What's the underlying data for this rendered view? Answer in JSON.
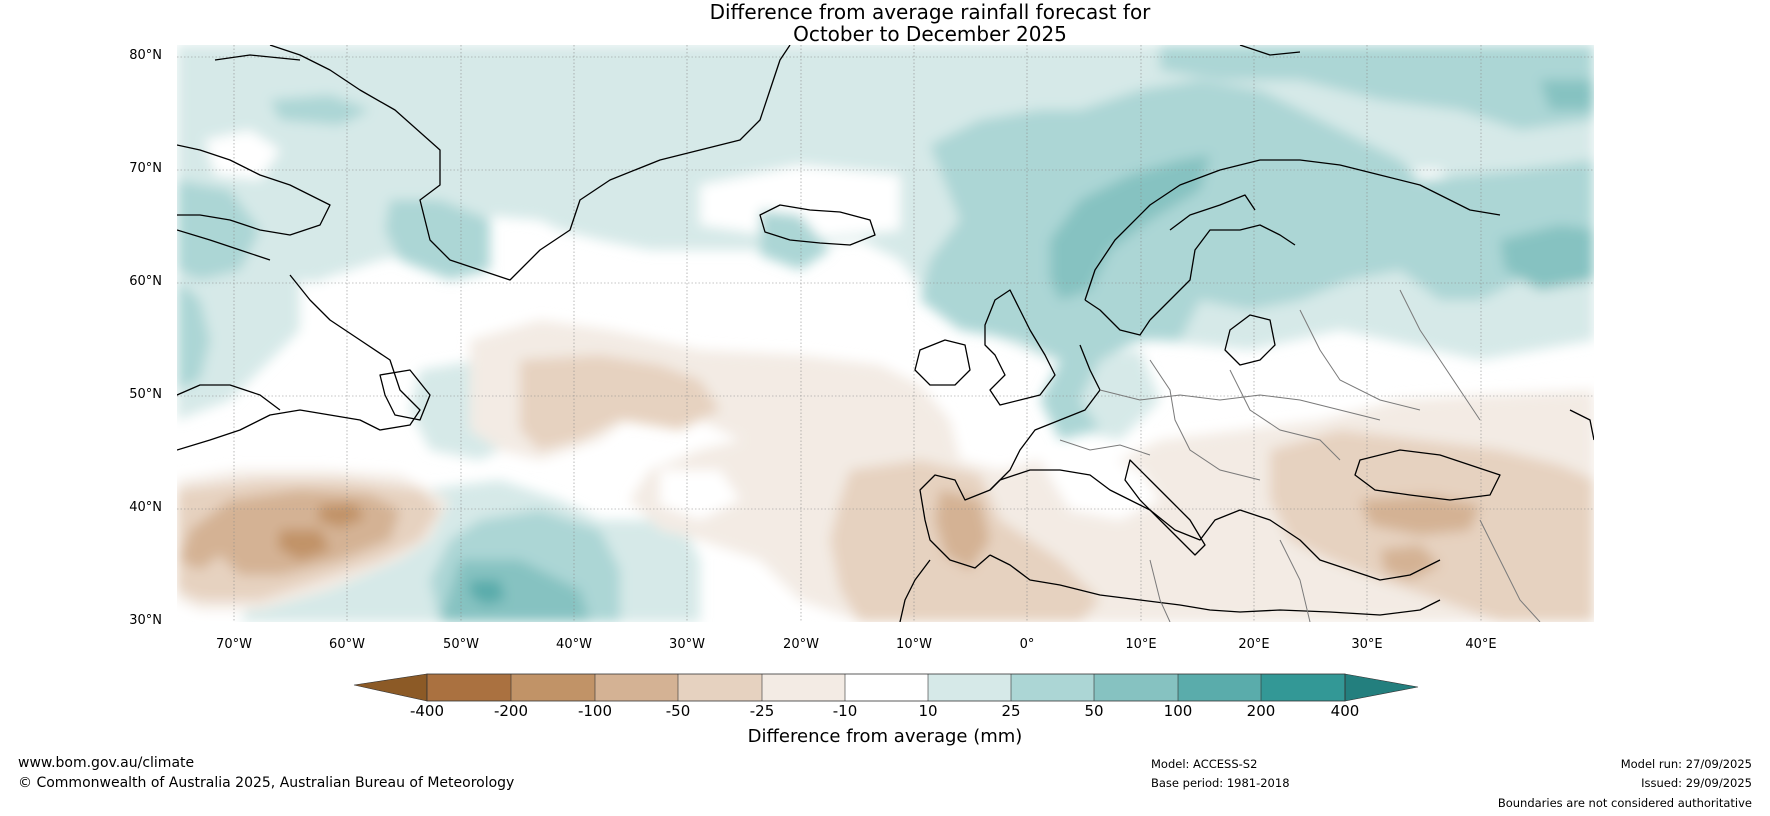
{
  "title": {
    "line1": "Difference from average rainfall forecast for",
    "line2": "October to December 2025"
  },
  "map": {
    "projection": "plate-carree",
    "lon_range": [
      -75,
      50
    ],
    "lat_range": [
      30,
      81
    ],
    "lat_labels": [
      "80°N",
      "70°N",
      "60°N",
      "50°N",
      "40°N",
      "30°N"
    ],
    "lon_labels": [
      "70°W",
      "60°W",
      "50°W",
      "40°W",
      "30°W",
      "20°W",
      "10°W",
      "0°",
      "10°E",
      "20°E",
      "30°E",
      "40°E"
    ],
    "features": {
      "land_outline_color": "#000000",
      "border_color": "#777777",
      "gridline_color": "#888888"
    }
  },
  "colorbar": {
    "label": "Difference from average (mm)",
    "ticks": [
      "-400",
      "-200",
      "-100",
      "-50",
      "-25",
      "-10",
      "10",
      "25",
      "50",
      "100",
      "200",
      "400"
    ],
    "colors": {
      "lt_-400": "#8c5a26",
      "c_-400_-200": "#aa7140",
      "c_-200_-100": "#c19367",
      "c_-100_-50": "#d4b294",
      "c_-50_-25": "#e6d2c0",
      "c_-25_-10": "#f3ebe4",
      "c_-10_10": "#ffffff",
      "c_10_25": "#d6e9e8",
      "c_25_50": "#acd6d5",
      "c_50_100": "#86c2c1",
      "c_100_200": "#5aacab",
      "c_200_400": "#339896",
      "gt_400": "#237f7e"
    }
  },
  "footer": {
    "website": "www.bom.gov.au/climate",
    "copyright": "© Commonwealth of Australia 2025, Australian Bureau of Meteorology",
    "model": "Model: ACCESS-S2",
    "base_period": "Base period: 1981-2018",
    "model_run": "Model run: 27/09/2025",
    "issued": "Issued: 29/09/2025",
    "disclaimer": "Boundaries are not considered authoritative"
  }
}
